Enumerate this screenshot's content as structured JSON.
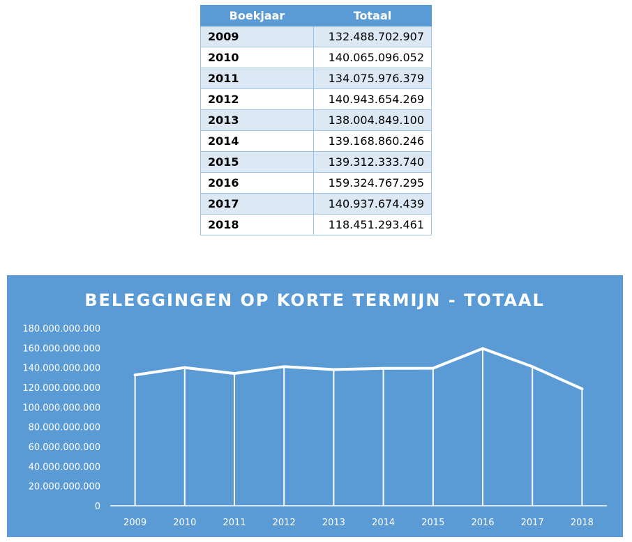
{
  "table": {
    "headers": [
      "Boekjaar",
      "Totaal"
    ],
    "rows": [
      {
        "year": "2009",
        "total": "132.488.702.907"
      },
      {
        "year": "2010",
        "total": "140.065.096.052"
      },
      {
        "year": "2011",
        "total": "134.075.976.379"
      },
      {
        "year": "2012",
        "total": "140.943.654.269"
      },
      {
        "year": "2013",
        "total": "138.004.849.100"
      },
      {
        "year": "2014",
        "total": "139.168.860.246"
      },
      {
        "year": "2015",
        "total": "139.312.333.740"
      },
      {
        "year": "2016",
        "total": "159.324.767.295"
      },
      {
        "year": "2017",
        "total": "140.937.674.439"
      },
      {
        "year": "2018",
        "total": "118.451.293.461"
      }
    ]
  },
  "colors": {
    "panel": "#5b9bd5",
    "line": "#ffffff",
    "header": "#5b9bd5",
    "band": "#dde8f5"
  },
  "chart_data": {
    "type": "line",
    "title": "BELEGGINGEN OP KORTE TERMIJN - TOTAAL",
    "categories": [
      "2009",
      "2010",
      "2011",
      "2012",
      "2013",
      "2014",
      "2015",
      "2016",
      "2017",
      "2018"
    ],
    "series": [
      {
        "values": [
          132488702907,
          140065096052,
          134075976379,
          140943654269,
          138004849100,
          139168860246,
          139312333740,
          159324767295,
          140937674439,
          118451293461
        ]
      }
    ],
    "ylim": [
      0,
      180000000000
    ],
    "yticks": [
      0,
      20000000000,
      40000000000,
      60000000000,
      80000000000,
      100000000000,
      120000000000,
      140000000000,
      160000000000,
      180000000000
    ],
    "ytick_labels": [
      "0",
      "20.000.000.000",
      "40.000.000.000",
      "60.000.000.000",
      "80.000.000.000",
      "100.000.000.000",
      "120.000.000.000",
      "140.000.000.000",
      "160.000.000.000",
      "180.000.000.000"
    ],
    "drop_lines": true,
    "grid": false,
    "legend": "none"
  }
}
